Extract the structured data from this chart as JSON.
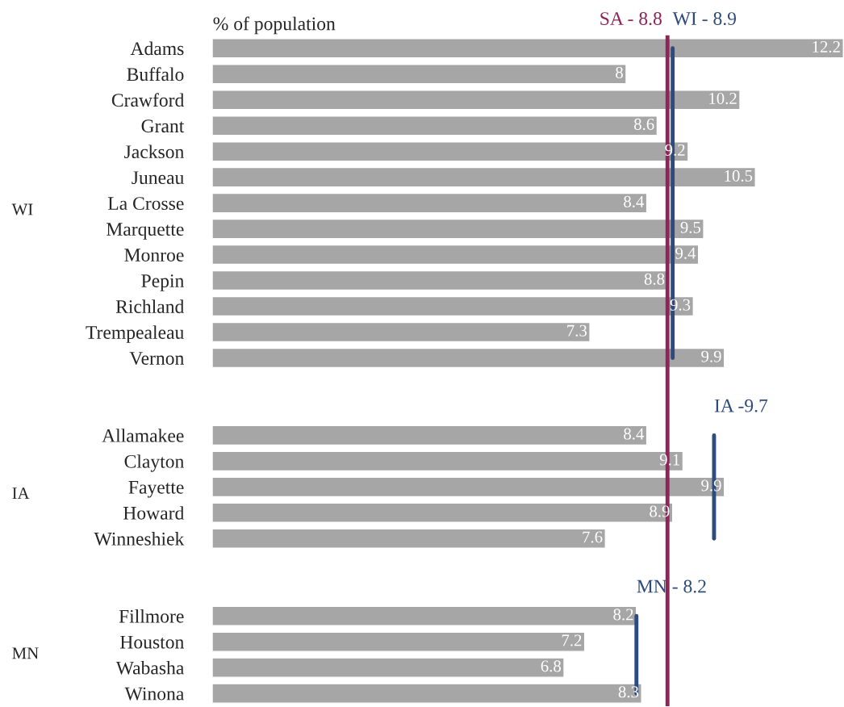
{
  "chart_data": {
    "type": "bar",
    "orientation": "horizontal",
    "tick_labels": "y",
    "xlabel": "% of population",
    "grid": false,
    "legend": false,
    "categories": [
      "Adams",
      "Buffalo",
      "Crawford",
      "Grant",
      "Jackson",
      "Juneau",
      "La Crosse",
      "Marquette",
      "Monroe",
      "Pepin",
      "Richland",
      "Trempealeau",
      "Vernon",
      null,
      null,
      "Allamakee",
      "Clayton",
      "Fayette",
      "Howard",
      "Winneshiek",
      null,
      null,
      "Fillmore",
      "Houston",
      "Wabasha",
      "Winona"
    ],
    "series": [
      {
        "color": "#a6a6a6",
        "values": [
          12.2,
          8,
          10.2,
          8.6,
          9.2,
          10.5,
          8.4,
          9.5,
          9.4,
          8.8,
          9.3,
          7.3,
          9.9,
          null,
          null,
          8.4,
          9.1,
          9.9,
          8.9,
          7.6,
          null,
          null,
          8.2,
          7.2,
          6.8,
          8.3
        ],
        "value_labels": [
          "12.2",
          "8",
          "10.2",
          "8.6",
          "9.2",
          "10.5",
          "8.4",
          "9.5",
          "9.4",
          "8.8",
          "9.3",
          "7.3",
          "9.9",
          null,
          null,
          "8.4",
          "9.1",
          "9.9",
          "8.9",
          "7.6",
          null,
          null,
          "8.2",
          "7.2",
          "6.8",
          "8.3"
        ]
      },
      {
        "type": "line",
        "name": "WI - 8.9",
        "color": "#2d4b7d",
        "values": [
          8.9,
          8.9,
          8.9,
          8.9,
          8.9,
          8.9,
          8.9,
          8.9,
          8.9,
          8.9,
          8.9,
          8.9,
          8.9,
          null,
          null,
          null,
          null,
          null,
          null,
          null,
          null,
          null,
          null,
          null,
          null,
          null
        ]
      },
      {
        "type": "line",
        "name": "IA -9.7",
        "color": "#2d4b7d",
        "values": [
          null,
          null,
          null,
          null,
          null,
          null,
          null,
          null,
          null,
          null,
          null,
          null,
          null,
          null,
          null,
          9.7,
          9.7,
          9.7,
          9.7,
          9.7,
          null,
          null,
          null,
          null,
          null,
          null
        ]
      },
      {
        "type": "line",
        "name": "MN - 8.2",
        "color": "#2d4b7d",
        "values": [
          null,
          null,
          null,
          null,
          null,
          null,
          null,
          null,
          null,
          null,
          null,
          null,
          null,
          null,
          null,
          null,
          null,
          null,
          null,
          null,
          null,
          null,
          8.2,
          8.2,
          8.2,
          8.2
        ]
      }
    ],
    "ref_lines": [
      {
        "axis": "x",
        "value": 8.8,
        "label": "SA - 8.8",
        "color": "#8e2457"
      }
    ],
    "annotations": [
      "WI",
      "IA",
      "MN"
    ]
  }
}
